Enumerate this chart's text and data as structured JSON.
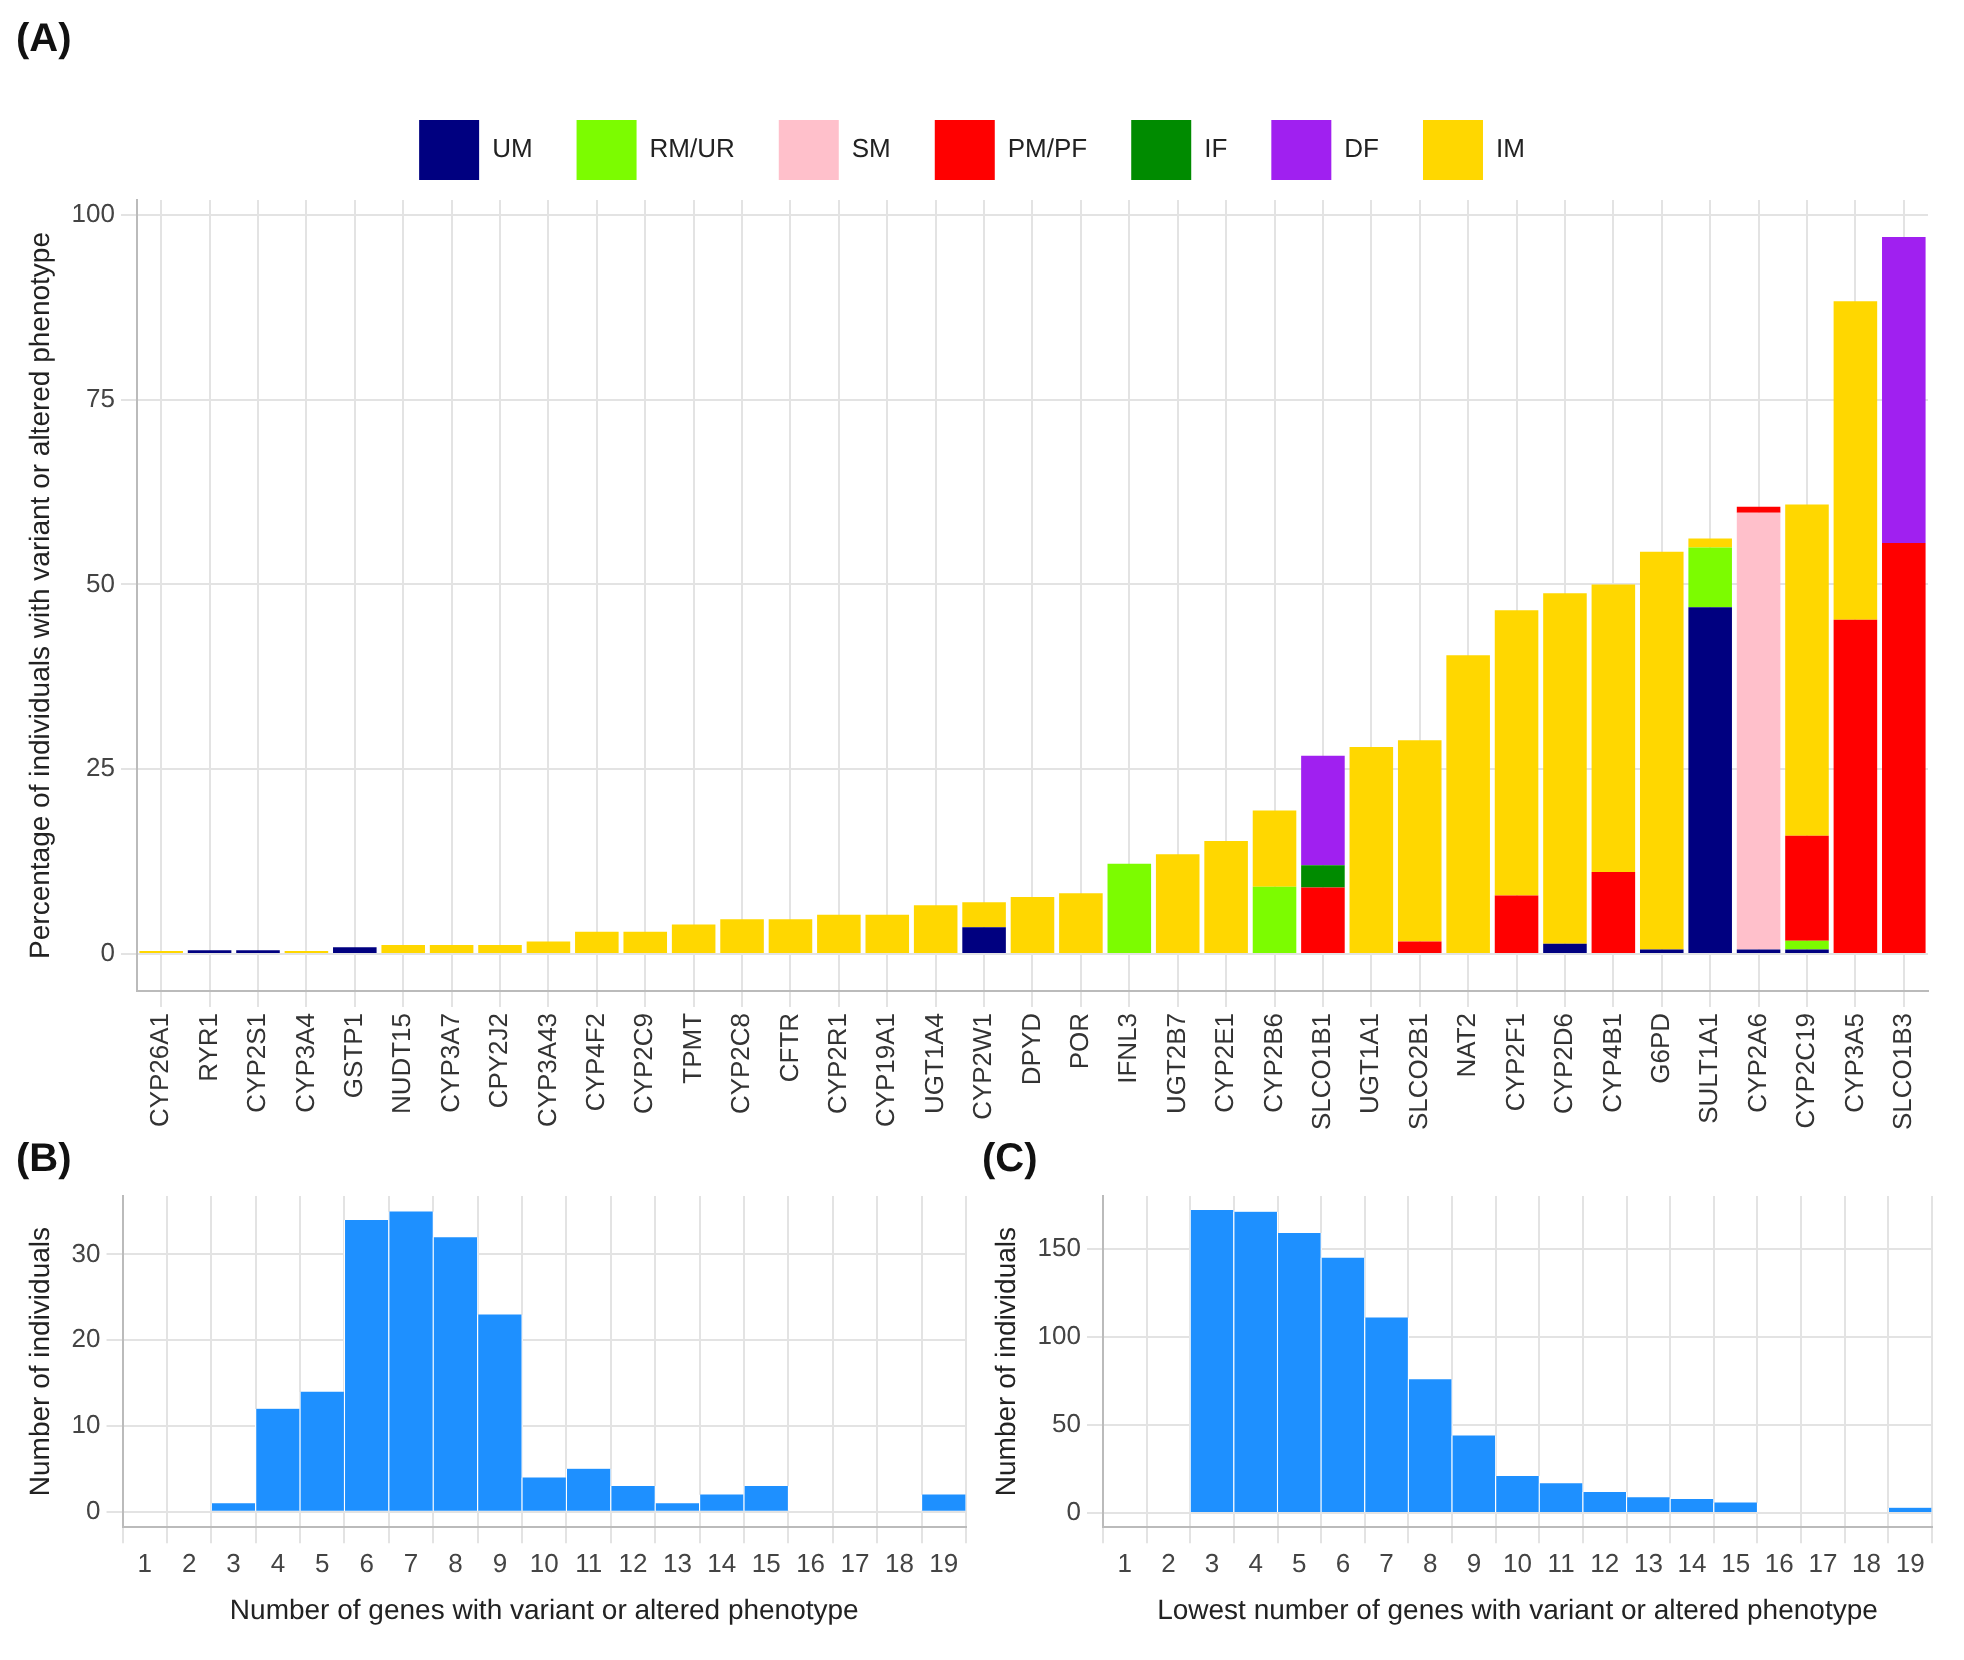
{
  "chart_data": [
    {
      "type": "bar",
      "title": "(A)",
      "ylabel": "Percentage of individuals with variant or altered phenotype",
      "stacked": true,
      "legend": "top",
      "grid": true,
      "categories": [
        "CYP26A1",
        "RYR1",
        "CYP2S1",
        "CYP3A4",
        "GSTP1",
        "NUDT15",
        "CYP3A7",
        "CPY2J2",
        "CYP3A43",
        "CYP4F2",
        "CYP2C9",
        "TPMT",
        "CYP2C8",
        "CFTR",
        "CYP2R1",
        "CYP19A1",
        "UGT1A4",
        "CYP2W1",
        "DPYD",
        "POR",
        "IFNL3",
        "UGT2B7",
        "CYP2E1",
        "CYP2B6",
        "SLCO1B1",
        "UGT1A1",
        "SLCO2B1",
        "NAT2",
        "CYP2F1",
        "CYP2D6",
        "CYP4B1",
        "G6PD",
        "SULT1A1",
        "CYP2A6",
        "CYP2C19",
        "CYP3A5",
        "SLCO1B3"
      ],
      "ylim": [
        -5,
        102
      ],
      "yticks": [
        0,
        25,
        50,
        75,
        100
      ],
      "series": [
        {
          "name": "UM",
          "color": "#000080",
          "values": [
            null,
            0.5,
            0.5,
            null,
            0.9,
            null,
            null,
            null,
            null,
            null,
            null,
            null,
            null,
            null,
            null,
            null,
            null,
            3.6,
            null,
            null,
            null,
            null,
            null,
            null,
            null,
            null,
            null,
            null,
            null,
            1.4,
            null,
            0.6,
            46.9,
            0.6,
            0.6,
            null,
            null
          ]
        },
        {
          "name": "RM/UR",
          "color": "#7cfc00",
          "values": [
            null,
            null,
            null,
            null,
            null,
            null,
            null,
            null,
            null,
            null,
            null,
            null,
            null,
            null,
            null,
            null,
            null,
            null,
            null,
            null,
            12.2,
            null,
            null,
            9.1,
            null,
            null,
            null,
            null,
            null,
            null,
            null,
            null,
            8.1,
            null,
            1.2,
            null,
            null
          ]
        },
        {
          "name": "SM",
          "color": "#ffc0cb",
          "values": [
            null,
            null,
            null,
            null,
            null,
            null,
            null,
            null,
            null,
            null,
            null,
            null,
            null,
            null,
            null,
            null,
            null,
            null,
            null,
            null,
            null,
            null,
            null,
            null,
            null,
            null,
            null,
            null,
            null,
            null,
            null,
            null,
            null,
            59.1,
            null,
            null,
            null
          ]
        },
        {
          "name": "PM/PF",
          "color": "#ff0000",
          "values": [
            null,
            null,
            null,
            null,
            null,
            null,
            null,
            null,
            null,
            null,
            null,
            null,
            null,
            null,
            null,
            null,
            null,
            null,
            null,
            null,
            null,
            null,
            null,
            null,
            9.0,
            null,
            1.7,
            null,
            7.9,
            null,
            11.1,
            null,
            null,
            0.8,
            14.2,
            45.2,
            55.6
          ]
        },
        {
          "name": "IF",
          "color": "#008b00",
          "values": [
            null,
            null,
            null,
            null,
            null,
            null,
            null,
            null,
            null,
            null,
            null,
            null,
            null,
            null,
            null,
            null,
            null,
            null,
            null,
            null,
            null,
            null,
            null,
            null,
            3.0,
            null,
            null,
            null,
            null,
            null,
            null,
            null,
            null,
            null,
            null,
            null,
            null
          ]
        },
        {
          "name": "DF",
          "color": "#a020f0",
          "values": [
            null,
            null,
            null,
            null,
            null,
            null,
            null,
            null,
            null,
            null,
            null,
            null,
            null,
            null,
            null,
            null,
            null,
            null,
            null,
            null,
            null,
            null,
            null,
            null,
            14.8,
            null,
            null,
            null,
            null,
            null,
            null,
            null,
            null,
            null,
            null,
            null,
            41.4
          ]
        },
        {
          "name": "IM",
          "color": "#ffd700",
          "values": [
            0.4,
            null,
            null,
            0.4,
            null,
            1.2,
            1.2,
            1.2,
            1.7,
            3,
            3,
            4,
            4.7,
            4.7,
            5.3,
            5.3,
            6.6,
            3.4,
            7.7,
            8.2,
            null,
            13.5,
            15.3,
            10.3,
            null,
            28.0,
            27.2,
            40.4,
            38.6,
            47.4,
            38.9,
            53.8,
            1.2,
            null,
            44.8,
            43.1,
            null
          ]
        }
      ]
    },
    {
      "type": "histogram",
      "title": "(B)",
      "xlabel": "Number of genes with variant or altered phenotype",
      "ylabel": "Number of individuals",
      "grid": true,
      "color": "#1e90ff",
      "bins": [
        2.5,
        3.5,
        4.5,
        5.5,
        6.5,
        7.5,
        8.5,
        9.5,
        10.5,
        11.5,
        12.5,
        13.5,
        14.5,
        15.5,
        16.5,
        17.5,
        18.5,
        19.5
      ],
      "values": [
        1,
        12,
        14,
        34,
        35,
        32,
        23,
        4,
        5,
        3,
        1,
        2,
        3,
        0,
        0,
        0,
        2
      ],
      "xlim": [
        0.5,
        19.5
      ],
      "xticks": [
        1,
        2,
        3,
        4,
        5,
        6,
        7,
        8,
        9,
        10,
        11,
        12,
        13,
        14,
        15,
        16,
        17,
        18,
        19
      ],
      "ylim": [
        -1.8,
        36.8
      ],
      "yticks": [
        0,
        10,
        20,
        30
      ]
    },
    {
      "type": "histogram",
      "title": "(C)",
      "xlabel": "Lowest number of genes with variant or altered phenotype",
      "ylabel": "Number of individuals",
      "grid": true,
      "color": "#1e90ff",
      "bins": [
        2.5,
        3.5,
        4.5,
        5.5,
        6.5,
        7.5,
        8.5,
        9.5,
        10.5,
        11.5,
        12.5,
        13.5,
        14.5,
        15.5,
        16.5,
        17.5,
        18.5,
        19.5
      ],
      "values": [
        172,
        171,
        159,
        145,
        111,
        76,
        44,
        21,
        17,
        12,
        9,
        8,
        6,
        0,
        0,
        0,
        3
      ],
      "xlim": [
        0.5,
        19.5
      ],
      "xticks": [
        1,
        2,
        3,
        4,
        5,
        6,
        7,
        8,
        9,
        10,
        11,
        12,
        13,
        14,
        15,
        16,
        17,
        18,
        19
      ],
      "ylim": [
        -8,
        180
      ],
      "yticks": [
        0,
        50,
        100,
        150
      ]
    }
  ]
}
